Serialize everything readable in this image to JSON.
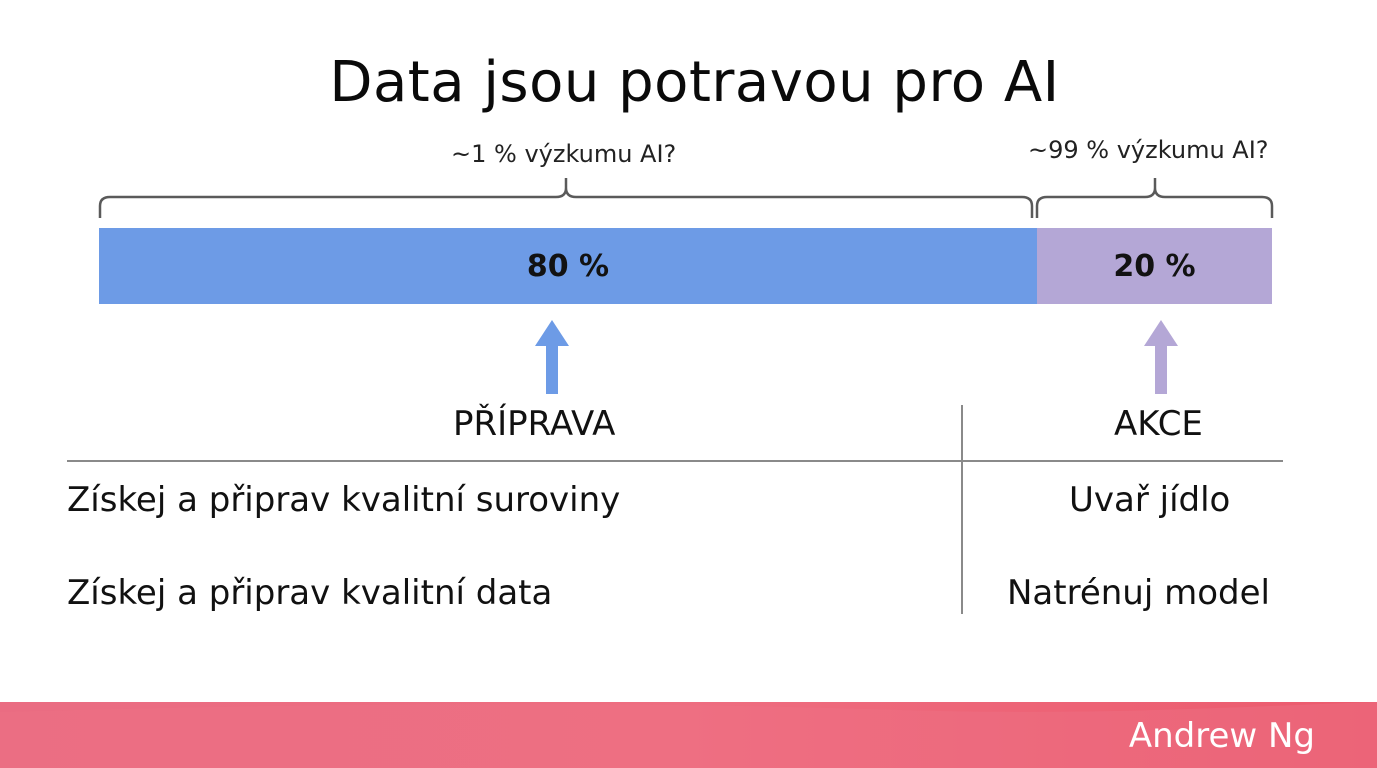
{
  "title": "Data jsou potravou pro AI",
  "braces": {
    "left_label": "~1 % výzkumu AI?",
    "right_label": "~99 % výzkumu AI?"
  },
  "bar": {
    "left_value": "80 %",
    "right_value": "20 %",
    "left_fraction": 0.8,
    "right_fraction": 0.2,
    "left_color": "#6d9be6",
    "right_color": "#b4a7d6"
  },
  "table": {
    "headers": [
      "PŘÍPRAVA",
      "AKCE"
    ],
    "rows": [
      [
        "Získej a připrav kvalitní suroviny",
        "Uvař jídlo"
      ],
      [
        "Získej a připrav kvalitní data",
        "Natrénuj model"
      ]
    ]
  },
  "footer": {
    "author": "Andrew Ng",
    "color": "#ec6a7e"
  }
}
